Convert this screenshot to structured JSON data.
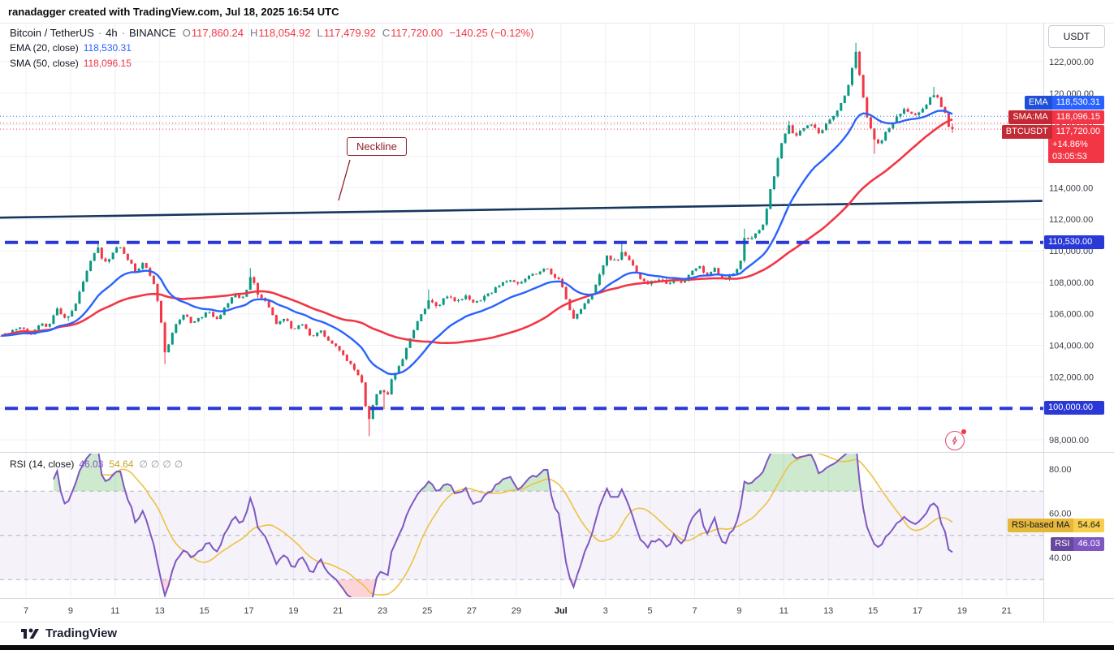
{
  "attribution": {
    "text": "ranadagger created with TradingView.com, Jul 18, 2025 16:54 UTC"
  },
  "symbol": {
    "title": "Bitcoin / TetherUS",
    "dot": "·",
    "interval": "4h",
    "exchange": "BINANCE",
    "ohlc": {
      "o_label": "O",
      "o": "117,860.24",
      "h_label": "H",
      "h": "118,054.92",
      "l_label": "L",
      "l": "117,479.92",
      "c_label": "C",
      "c": "117,720.00",
      "change": "−140.25 (−0.12%)"
    }
  },
  "indicators": {
    "ema": {
      "label": "EMA (20, close)",
      "value": "118,530.31"
    },
    "sma": {
      "label": "SMA (50, close)",
      "value": "118,096.15"
    },
    "rsi": {
      "label": "RSI (14, close)",
      "value": "46.03",
      "ma_value": "54.64",
      "hidden_icon": "∅"
    }
  },
  "badges": {
    "ema": {
      "name": "EMA",
      "value": "118,530.31"
    },
    "sma": {
      "name": "SMA:MA",
      "value": "118,096.15"
    },
    "price": {
      "name": "BTCUSDT",
      "value": "117,720.00",
      "change_pct": "+14.86%",
      "countdown": "03:05:53"
    },
    "support_upper": "110,530.00",
    "support_lower": "100,000.00",
    "rsi_ma": {
      "name": "RSI-based MA",
      "value": "54.64"
    },
    "rsi": {
      "name": "RSI",
      "value": "46.03"
    }
  },
  "annotations": {
    "neckline_label": "Neckline"
  },
  "axis": {
    "currency_button": "USDT",
    "price_ticks": [
      {
        "p": 122000,
        "label": "122,000.00"
      },
      {
        "p": 120000,
        "label": "120,000.00"
      },
      {
        "p": 118000,
        "label": "118,000.00"
      },
      {
        "p": 116000,
        "label": "116,000.00"
      },
      {
        "p": 114000,
        "label": "114,000.00"
      },
      {
        "p": 112000,
        "label": "112,000.00"
      },
      {
        "p": 110000,
        "label": "110,000.00"
      },
      {
        "p": 108000,
        "label": "108,000.00"
      },
      {
        "p": 106000,
        "label": "106,000.00"
      },
      {
        "p": 104000,
        "label": "104,000.00"
      },
      {
        "p": 102000,
        "label": "102,000.00"
      },
      {
        "p": 100000,
        "label": "100,000.00"
      },
      {
        "p": 98000,
        "label": "98,000.00"
      }
    ],
    "rsi_ticks": [
      {
        "v": 80,
        "label": "80.00"
      },
      {
        "v": 60,
        "label": "60.00"
      },
      {
        "v": 40,
        "label": "40.00"
      }
    ],
    "time_ticks": [
      {
        "t": 7,
        "label": "7"
      },
      {
        "t": 9,
        "label": "9"
      },
      {
        "t": 11,
        "label": "11"
      },
      {
        "t": 13,
        "label": "13"
      },
      {
        "t": 15,
        "label": "15"
      },
      {
        "t": 17,
        "label": "17"
      },
      {
        "t": 19,
        "label": "19"
      },
      {
        "t": 21,
        "label": "21"
      },
      {
        "t": 23,
        "label": "23"
      },
      {
        "t": 25,
        "label": "25"
      },
      {
        "t": 27,
        "label": "27"
      },
      {
        "t": 29,
        "label": "29"
      },
      {
        "t": 31,
        "label": "Jul",
        "bold": true
      },
      {
        "t": 33,
        "label": "3"
      },
      {
        "t": 35,
        "label": "5"
      },
      {
        "t": 37,
        "label": "7"
      },
      {
        "t": 39,
        "label": "9"
      },
      {
        "t": 41,
        "label": "11"
      },
      {
        "t": 43,
        "label": "13"
      },
      {
        "t": 45,
        "label": "15"
      },
      {
        "t": 47,
        "label": "17"
      },
      {
        "t": 49,
        "label": "19"
      },
      {
        "t": 51,
        "label": "21"
      }
    ]
  },
  "footer": {
    "logo_text": "TradingView"
  },
  "colors": {
    "up": "#089981",
    "down": "#f23645",
    "ema": "#2962ff",
    "sma": "#f23645",
    "neckline": "#16375e",
    "support": "#2a38d8",
    "rsi": "#7e57c2",
    "rsi_ma": "#edc240",
    "overbought_fill": "rgba(76,175,80,0.28)",
    "oversold_fill": "rgba(242,54,69,0.22)",
    "band_fill": "rgba(126,87,194,0.08)",
    "grid": "#eef0f3",
    "separator": "#d6dae0",
    "axis_text": "#3a3e47"
  },
  "chart_data": {
    "type": "candlestick",
    "title": "Bitcoin / TetherUS · 4h · BINANCE",
    "seed": 11,
    "x_axis": {
      "unit": "day-of-range (Jun 1 = 1, Jul d = 30 + d)",
      "start_day": 5.9,
      "end_day": 48.7,
      "candle_hours": 4
    },
    "y_axis": {
      "min": 97280,
      "max": 124470,
      "tick_step": 2000
    },
    "last": {
      "open": 117860.24,
      "high": 118054.92,
      "low": 117479.92,
      "close": 117720.0,
      "change": -140.25,
      "change_pct": -0.12
    },
    "close_path_anchors": [
      [
        5.9,
        104600
      ],
      [
        6.3,
        104900
      ],
      [
        6.8,
        105100
      ],
      [
        7.2,
        104600
      ],
      [
        7.6,
        105400
      ],
      [
        8.0,
        105100
      ],
      [
        8.4,
        106300
      ],
      [
        8.8,
        105600
      ],
      [
        9.2,
        106500
      ],
      [
        9.6,
        108200
      ],
      [
        10.0,
        109800
      ],
      [
        10.2,
        110300
      ],
      [
        10.5,
        109200
      ],
      [
        10.9,
        109800
      ],
      [
        11.2,
        110400
      ],
      [
        11.5,
        109600
      ],
      [
        11.9,
        108700
      ],
      [
        12.3,
        109300
      ],
      [
        12.7,
        108100
      ],
      [
        13.0,
        106300
      ],
      [
        13.25,
        103400
      ],
      [
        13.6,
        104900
      ],
      [
        14.0,
        106000
      ],
      [
        14.4,
        105500
      ],
      [
        14.8,
        105800
      ],
      [
        15.2,
        106100
      ],
      [
        15.6,
        105700
      ],
      [
        16.0,
        106600
      ],
      [
        16.4,
        107200
      ],
      [
        16.8,
        107000
      ],
      [
        17.1,
        108400
      ],
      [
        17.4,
        107300
      ],
      [
        17.8,
        106700
      ],
      [
        18.2,
        105400
      ],
      [
        18.6,
        105800
      ],
      [
        19.0,
        104900
      ],
      [
        19.4,
        105400
      ],
      [
        19.8,
        104600
      ],
      [
        20.2,
        104900
      ],
      [
        20.6,
        104200
      ],
      [
        21.0,
        103900
      ],
      [
        21.4,
        103100
      ],
      [
        21.8,
        102400
      ],
      [
        22.1,
        101600
      ],
      [
        22.35,
        98900
      ],
      [
        22.6,
        100500
      ],
      [
        22.9,
        101200
      ],
      [
        23.2,
        100800
      ],
      [
        23.5,
        102200
      ],
      [
        23.9,
        103100
      ],
      [
        24.3,
        104600
      ],
      [
        24.7,
        105900
      ],
      [
        25.1,
        106900
      ],
      [
        25.5,
        106500
      ],
      [
        25.9,
        107200
      ],
      [
        26.3,
        106800
      ],
      [
        26.7,
        107100
      ],
      [
        27.1,
        106600
      ],
      [
        27.5,
        107000
      ],
      [
        27.9,
        107400
      ],
      [
        28.3,
        107900
      ],
      [
        28.7,
        108200
      ],
      [
        29.1,
        107900
      ],
      [
        29.5,
        108300
      ],
      [
        29.9,
        108600
      ],
      [
        30.3,
        108900
      ],
      [
        30.7,
        108400
      ],
      [
        31.0,
        108100
      ],
      [
        31.3,
        106600
      ],
      [
        31.6,
        105700
      ],
      [
        32.0,
        106400
      ],
      [
        32.4,
        107300
      ],
      [
        32.8,
        108800
      ],
      [
        33.1,
        109700
      ],
      [
        33.5,
        109200
      ],
      [
        33.8,
        110000
      ],
      [
        34.1,
        109300
      ],
      [
        34.5,
        108300
      ],
      [
        34.9,
        107900
      ],
      [
        35.3,
        108200
      ],
      [
        35.7,
        107900
      ],
      [
        36.1,
        108200
      ],
      [
        36.5,
        108000
      ],
      [
        36.9,
        108700
      ],
      [
        37.2,
        109000
      ],
      [
        37.5,
        108300
      ],
      [
        37.9,
        108800
      ],
      [
        38.3,
        108200
      ],
      [
        38.7,
        108500
      ],
      [
        39.0,
        108900
      ],
      [
        39.25,
        110900
      ],
      [
        39.5,
        110600
      ],
      [
        39.8,
        111200
      ],
      [
        40.1,
        111600
      ],
      [
        40.4,
        113800
      ],
      [
        40.7,
        115600
      ],
      [
        41.0,
        117300
      ],
      [
        41.25,
        118000
      ],
      [
        41.5,
        117200
      ],
      [
        41.8,
        117700
      ],
      [
        42.2,
        118000
      ],
      [
        42.6,
        117500
      ],
      [
        43.0,
        118200
      ],
      [
        43.4,
        118900
      ],
      [
        43.8,
        120000
      ],
      [
        44.05,
        121500
      ],
      [
        44.2,
        122800
      ],
      [
        44.4,
        121200
      ],
      [
        44.6,
        119400
      ],
      [
        44.8,
        118100
      ],
      [
        45.05,
        117000
      ],
      [
        45.3,
        116700
      ],
      [
        45.6,
        117600
      ],
      [
        45.9,
        118200
      ],
      [
        46.2,
        118700
      ],
      [
        46.5,
        119000
      ],
      [
        46.8,
        118500
      ],
      [
        47.1,
        118800
      ],
      [
        47.4,
        119300
      ],
      [
        47.65,
        120000
      ],
      [
        47.9,
        119800
      ],
      [
        48.15,
        118900
      ],
      [
        48.4,
        118200
      ],
      [
        48.7,
        117720
      ]
    ],
    "wick_events": [
      {
        "t": 10.2,
        "high": 110600
      },
      {
        "t": 13.25,
        "low": 102800
      },
      {
        "t": 17.1,
        "high": 108900
      },
      {
        "t": 22.35,
        "low": 98230
      },
      {
        "t": 23.05,
        "low": 99950
      },
      {
        "t": 25.1,
        "high": 107550
      },
      {
        "t": 33.8,
        "high": 110450
      },
      {
        "t": 39.25,
        "high": 111400
      },
      {
        "t": 41.25,
        "high": 118250
      },
      {
        "t": 44.2,
        "high": 123200
      },
      {
        "t": 45.05,
        "low": 116150
      },
      {
        "t": 47.65,
        "high": 120400
      }
    ],
    "overlays": {
      "ema_period": 20,
      "ema_value": 118530.31,
      "sma_period": 50,
      "sma_value": 118096.15,
      "neckline": {
        "from_day": 5.8,
        "from_price": 112100,
        "to_day": 52.6,
        "to_price": 113160
      },
      "support_levels": [
        110530,
        100000
      ],
      "price_lines": [
        118530.31,
        118096.15,
        117720.0
      ]
    },
    "rsi": {
      "period": 14,
      "ma_period": 14,
      "current": 46.03,
      "ma_current": 54.64,
      "levels": [
        70,
        50,
        30
      ],
      "range_shown": [
        30,
        80
      ]
    }
  }
}
